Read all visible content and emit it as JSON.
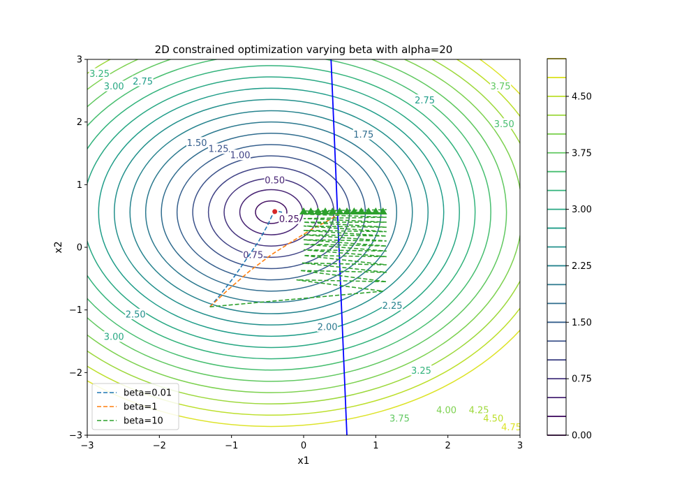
{
  "chart_data": {
    "type": "contour",
    "title": "2D constrained optimization varying beta with alpha=20",
    "xlabel": "x1",
    "ylabel": "x2",
    "xlim": [
      -3,
      3
    ],
    "ylim": [
      -3,
      3
    ],
    "xticks": [
      "−3",
      "−2",
      "−1",
      "0",
      "1",
      "2",
      "3"
    ],
    "yticks": [
      "−3",
      "−2",
      "−1",
      "0",
      "1",
      "2",
      "3"
    ],
    "contour_center": [
      -0.45,
      0.56
    ],
    "contour_levels": [
      0.25,
      0.5,
      0.75,
      1.0,
      1.25,
      1.5,
      1.75,
      2.0,
      2.25,
      2.5,
      2.75,
      3.0,
      3.25,
      3.5,
      3.75,
      4.0,
      4.25,
      4.5,
      4.75
    ],
    "contour_labels": [
      {
        "text": "0.25",
        "x": -0.2,
        "y": 0.45
      },
      {
        "text": "0.50",
        "x": -0.4,
        "y": 1.07
      },
      {
        "text": "0.75",
        "x": -0.7,
        "y": -0.12
      },
      {
        "text": "1.00",
        "x": -0.88,
        "y": 1.47
      },
      {
        "text": "1.25",
        "x": -1.18,
        "y": 1.57
      },
      {
        "text": "1.50",
        "x": -1.48,
        "y": 1.67
      },
      {
        "text": "1.75",
        "x": 0.83,
        "y": 1.8
      },
      {
        "text": "2.00",
        "x": 0.33,
        "y": -1.27
      },
      {
        "text": "2.25",
        "x": 1.23,
        "y": -0.93
      },
      {
        "text": "2.50",
        "x": -2.33,
        "y": -1.07
      },
      {
        "text": "2.75",
        "x": -2.23,
        "y": 2.65
      },
      {
        "text": "2.75",
        "x": 1.68,
        "y": 2.35
      },
      {
        "text": "3.00",
        "x": -2.63,
        "y": 2.57
      },
      {
        "text": "3.00",
        "x": -2.63,
        "y": -1.43
      },
      {
        "text": "3.25",
        "x": -2.83,
        "y": 2.77
      },
      {
        "text": "3.25",
        "x": 1.63,
        "y": -1.97
      },
      {
        "text": "3.50",
        "x": 2.78,
        "y": 1.97
      },
      {
        "text": "3.75",
        "x": 2.73,
        "y": 2.57
      },
      {
        "text": "3.75",
        "x": 1.33,
        "y": -2.73
      },
      {
        "text": "4.00",
        "x": 1.98,
        "y": -2.6
      },
      {
        "text": "4.25",
        "x": 2.43,
        "y": -2.6
      },
      {
        "text": "4.50",
        "x": 2.63,
        "y": -2.73
      },
      {
        "text": "4.75",
        "x": 2.88,
        "y": -2.87
      }
    ],
    "constraint_line": {
      "x": [
        0.38,
        0.6
      ],
      "y": [
        3,
        -3
      ]
    },
    "series": [
      {
        "name": "beta=0.01",
        "color": "#1f77b4",
        "x": [
          -1.3,
          -1.15,
          -0.95,
          -0.8,
          -0.62,
          -0.5,
          -0.44,
          -0.38,
          -0.3
        ],
        "y": [
          -0.95,
          -0.75,
          -0.45,
          -0.2,
          0.1,
          0.35,
          0.5,
          0.58,
          0.56
        ]
      },
      {
        "name": "beta=1",
        "color": "#ff7f0e",
        "x": [
          -1.3,
          -1.05,
          -0.75,
          -0.45,
          -0.15,
          0.1,
          0.3,
          0.45,
          0.5
        ],
        "y": [
          -0.95,
          -0.68,
          -0.38,
          -0.12,
          0.1,
          0.28,
          0.4,
          0.5,
          0.55
        ]
      },
      {
        "name": "beta=10",
        "color": "#2ca02c",
        "x": [
          -1.3,
          1.1,
          -0.1,
          1.15,
          -0.05,
          1.15,
          -0.02,
          1.15,
          0.0,
          1.15,
          0.0,
          1.15,
          0.0,
          1.15,
          0.0,
          1.15,
          0.0,
          1.15,
          0.0,
          1.15,
          0.0,
          1.15,
          0.0,
          1.15,
          0.0,
          1.15,
          0.0,
          1.15,
          0.0,
          1.15
        ],
        "y": [
          -0.95,
          -0.7,
          -0.52,
          -0.55,
          -0.37,
          -0.4,
          -0.25,
          -0.28,
          -0.13,
          -0.15,
          -0.04,
          -0.06,
          0.05,
          0.02,
          0.12,
          0.1,
          0.2,
          0.18,
          0.27,
          0.25,
          0.34,
          0.32,
          0.4,
          0.4,
          0.46,
          0.48,
          0.53,
          0.55,
          0.58,
          0.6
        ]
      }
    ],
    "optimum_marker": {
      "x": -0.4,
      "y": 0.57,
      "color": "#d62728"
    },
    "beta10_markers": {
      "x": [
        0.0,
        0.1,
        0.2,
        0.3,
        0.4,
        0.5,
        0.6,
        0.7,
        0.8,
        0.9,
        1.0,
        1.1
      ],
      "y": 0.58,
      "color": "#2ca02c"
    },
    "legend": {
      "position": "lower-left"
    },
    "colorbar": {
      "min": 0.0,
      "max": 5.0,
      "levels": [
        0.0,
        0.25,
        0.5,
        0.75,
        1.0,
        1.25,
        1.5,
        1.75,
        2.0,
        2.25,
        2.5,
        2.75,
        3.0,
        3.25,
        3.5,
        3.75,
        4.0,
        4.25,
        4.5,
        4.75,
        5.0
      ],
      "ticks": [
        0.0,
        0.75,
        1.5,
        2.25,
        3.0,
        3.75,
        4.5
      ],
      "tick_labels": [
        "0.00",
        "0.75",
        "1.50",
        "2.25",
        "3.00",
        "3.75",
        "4.50"
      ]
    }
  }
}
